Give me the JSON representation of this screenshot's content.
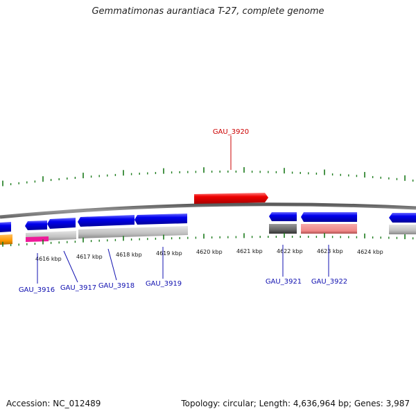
{
  "title": "Gemmatimonas aurantiaca T-27, complete genome",
  "footer": {
    "accession": "Accession: NC_012489",
    "summary": "Topology: circular; Length: 4,636,964 bp; Genes: 3,987"
  },
  "ticks": [
    "4616 kbp",
    "4617 kbp",
    "4618 kbp",
    "4619 kbp",
    "4620 kbp",
    "4621 kbp",
    "4622 kbp",
    "4623 kbp",
    "4624 kbp"
  ],
  "genes": [
    {
      "id": "GAU_3916",
      "highlight": false
    },
    {
      "id": "GAU_3917",
      "highlight": false
    },
    {
      "id": "GAU_3918",
      "highlight": false
    },
    {
      "id": "GAU_3919",
      "highlight": false
    },
    {
      "id": "GAU_3920",
      "highlight": true
    },
    {
      "id": "GAU_3921",
      "highlight": false
    },
    {
      "id": "GAU_3922",
      "highlight": false
    }
  ],
  "colors": {
    "gene_forward": "#0000ee",
    "gene_highlight": "#ee0000",
    "label_gene": "#1010b0",
    "label_highlight": "#cc0000",
    "backbone": "#8a8a8a",
    "tick": "#1a7a1a",
    "orange": "#ff9900",
    "magenta": "#ee1a99",
    "gray_feature": "#c0c0c0",
    "dark_feature": "#666666",
    "pink_feature": "#f08888"
  }
}
